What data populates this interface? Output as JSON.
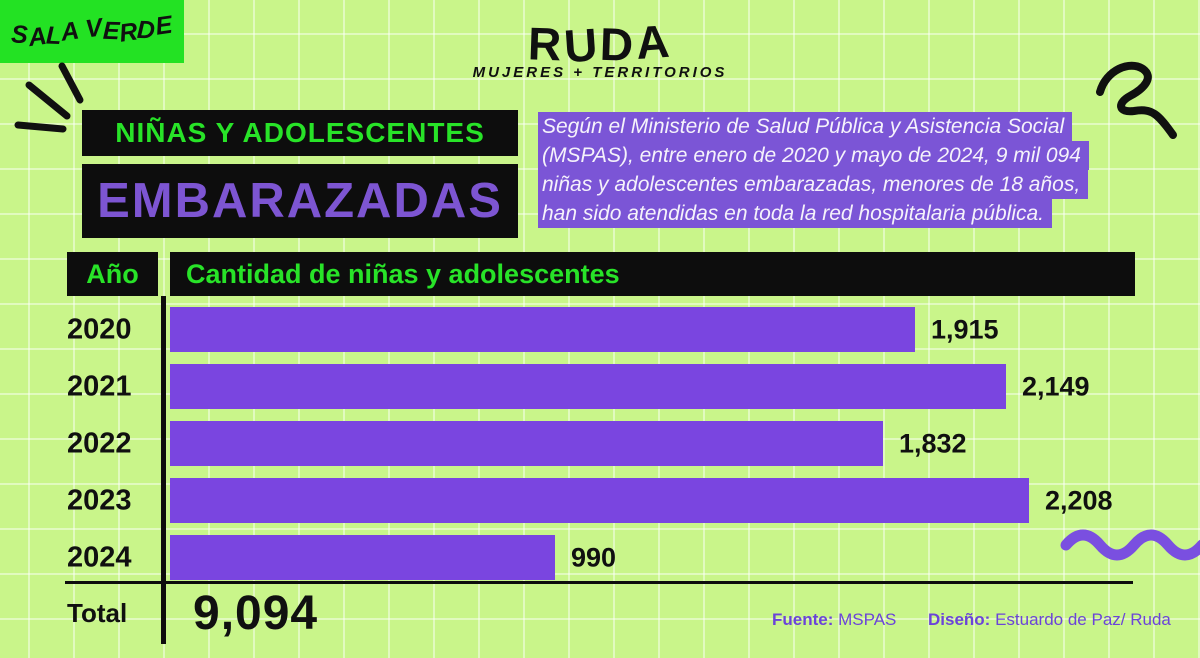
{
  "brand": {
    "sala_verde": "SALA VERDE",
    "ruda": "RUDA",
    "ruda_tagline": "MUJERES + TERRITORIOS"
  },
  "title": {
    "line1": "NIÑAS Y ADOLESCENTES",
    "line2": "EMBARAZADAS"
  },
  "intro": {
    "lines": [
      "Según el Ministerio de Salud Pública y Asistencia Social",
      "(MSPAS), entre enero de 2020 y mayo de 2024, 9 mil 094",
      "niñas y adolescentes embarazadas, menores de 18 años,",
      "han sido atendidas en toda la red hospitalaria pública."
    ]
  },
  "table": {
    "col_year": "Año",
    "col_amount": "Cantidad de niñas y adolescentes",
    "total_label": "Total",
    "total_value": "9,094"
  },
  "chart_data": {
    "type": "bar",
    "orientation": "horizontal",
    "title": "Niñas y adolescentes embarazadas",
    "xlabel": "Cantidad de niñas y adolescentes",
    "ylabel": "Año",
    "categories": [
      "2020",
      "2021",
      "2022",
      "2023",
      "2024"
    ],
    "values": [
      1915,
      2149,
      1832,
      2208,
      990
    ],
    "value_labels": [
      "1,915",
      "2,149",
      "1,832",
      "2,208",
      "990"
    ],
    "total": 9094,
    "xlim": [
      0,
      2208
    ],
    "grid": true,
    "bar_color": "#7a45e0"
  },
  "footer": {
    "source_label": "Fuente:",
    "source_value": "MSPAS",
    "design_label": "Diseño:",
    "design_value": "Estuardo de Paz/ Ruda"
  },
  "colors": {
    "background": "#c9f58a",
    "accent_green": "#23e223",
    "bar_purple": "#7a45e0",
    "highlight_purple": "#7b55d6",
    "text_purple": "#6b44d8",
    "black": "#0d0d0d"
  }
}
